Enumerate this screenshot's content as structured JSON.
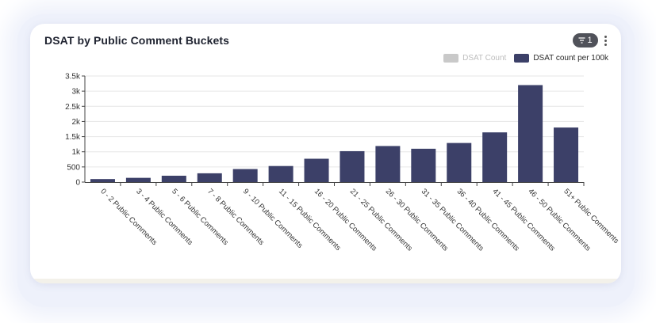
{
  "card": {
    "title": "DSAT by Public Comment Buckets",
    "filter_count": "1"
  },
  "legend": [
    {
      "label": "DSAT Count",
      "color": "#c9c9c9",
      "text_color": "#bdbdbd",
      "active": false
    },
    {
      "label": "DSAT count per 100k",
      "color": "#3c4068",
      "text_color": "#2a2a2a",
      "active": true
    }
  ],
  "chart_data": {
    "type": "bar",
    "categories": [
      "0 - 2 Public Comments",
      "3 - 4 Public Comments",
      "5 - 6 Public Comments",
      "7 - 8 Public Comments",
      "9 - 10 Public Comments",
      "11 - 15 Public Comments",
      "16 - 20 Public Comments",
      "21 - 25 Public Comments",
      "26 - 30 Public Comments",
      "31 - 35 Public Comments",
      "36 - 40 Public Comments",
      "41 - 45 Public Comments",
      "46 - 50 Public Comments",
      "51+ Public Comments"
    ],
    "series": [
      {
        "name": "DSAT count per 100k",
        "color": "#3c4068",
        "values": [
          100,
          140,
          210,
          290,
          430,
          530,
          770,
          1020,
          1190,
          1100,
          1290,
          1640,
          3200,
          1800
        ]
      }
    ],
    "ylim": [
      0,
      3500
    ],
    "yticks": [
      0,
      500,
      1000,
      1500,
      2000,
      2500,
      3000,
      3500
    ],
    "ytick_labels": [
      "0",
      "500",
      "1k",
      "1.5k",
      "2k",
      "2.5k",
      "3k",
      "3.5k"
    ],
    "grid": true,
    "legend_position": "top-right"
  }
}
